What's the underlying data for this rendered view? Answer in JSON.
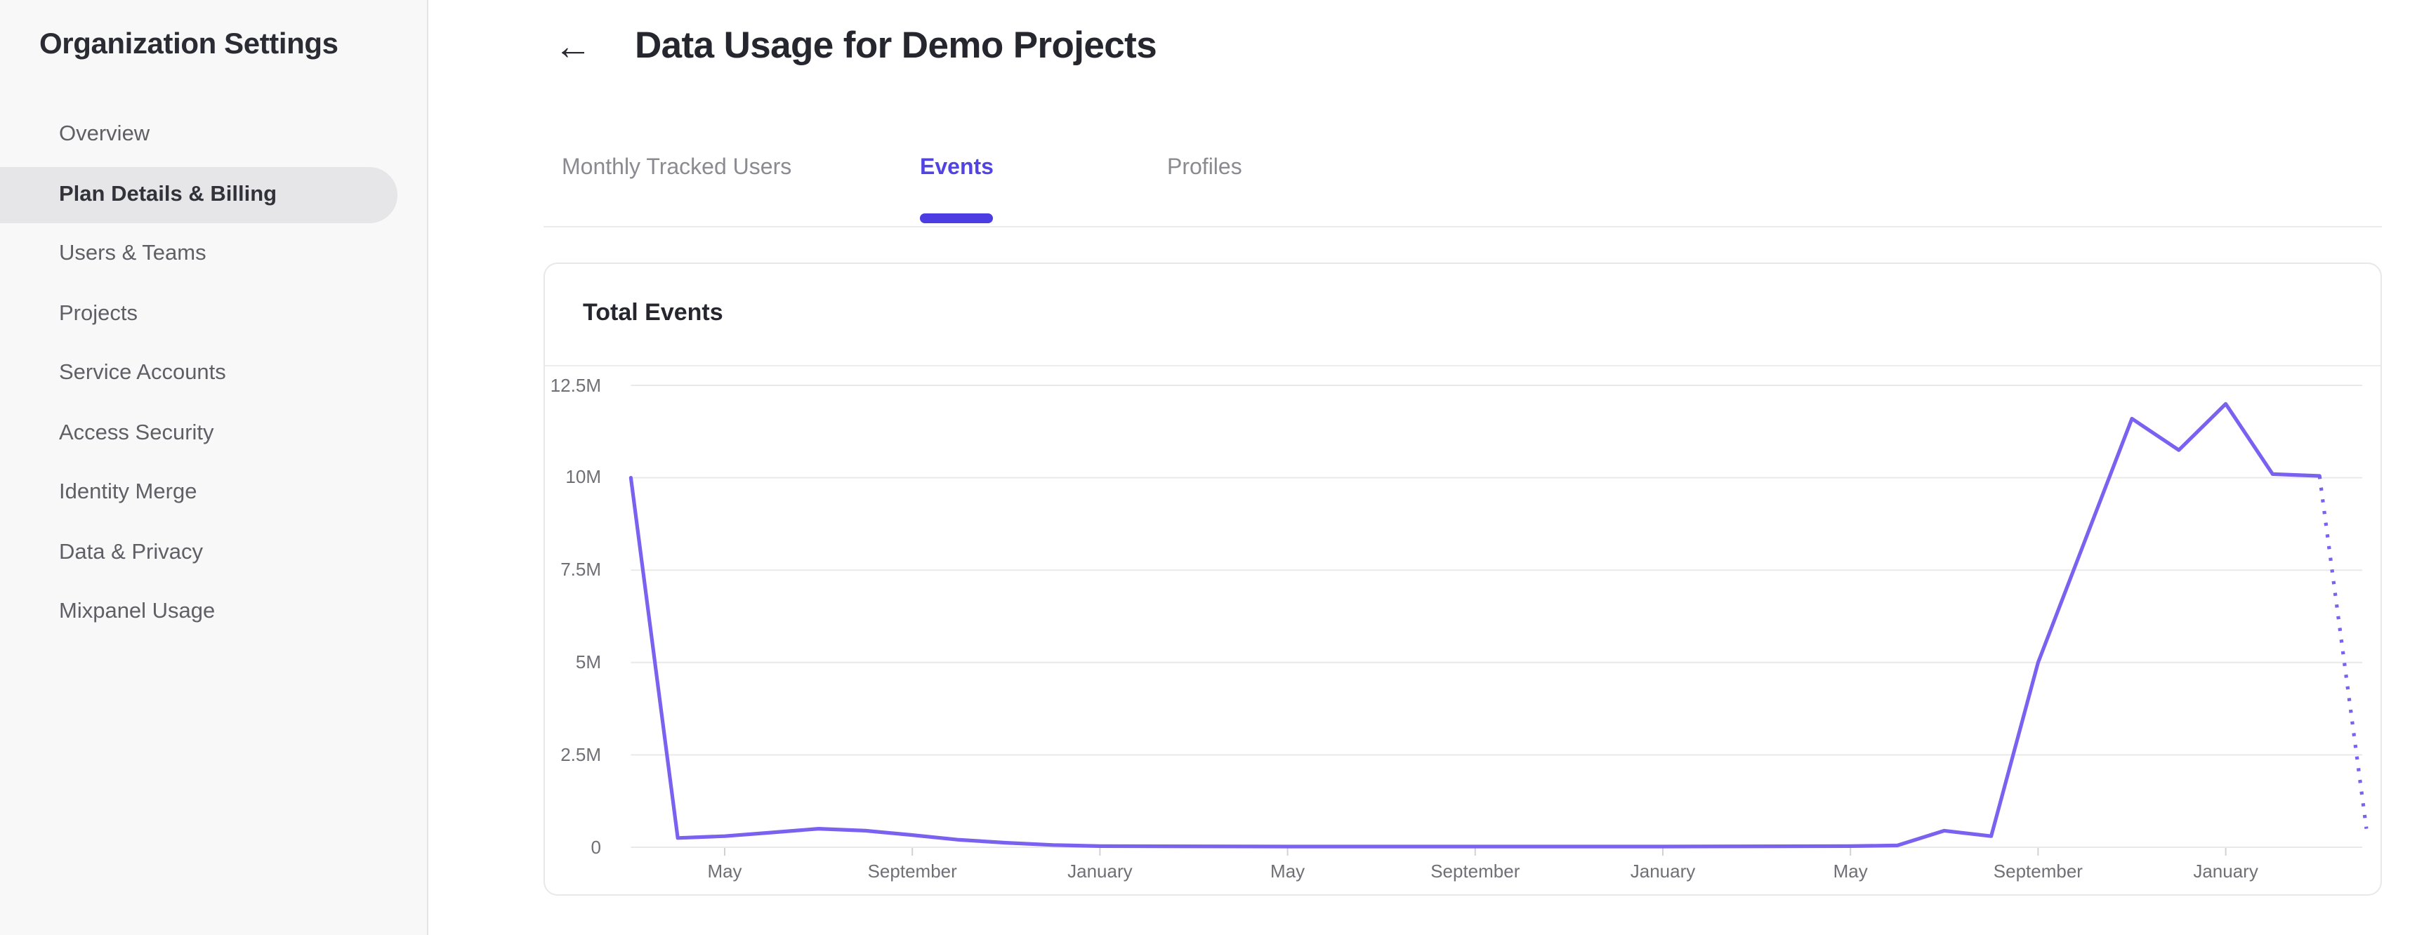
{
  "sidebar": {
    "title": "Organization Settings",
    "items": [
      {
        "label": "Overview",
        "selected": false
      },
      {
        "label": "Plan Details & Billing",
        "selected": true
      },
      {
        "label": "Users & Teams",
        "selected": false
      },
      {
        "label": "Projects",
        "selected": false
      },
      {
        "label": "Service Accounts",
        "selected": false
      },
      {
        "label": "Access Security",
        "selected": false
      },
      {
        "label": "Identity Merge",
        "selected": false
      },
      {
        "label": "Data & Privacy",
        "selected": false
      },
      {
        "label": "Mixpanel Usage",
        "selected": false
      }
    ]
  },
  "header": {
    "back_icon": "←",
    "title": "Data Usage for Demo Projects"
  },
  "tabs": [
    {
      "label": "Monthly Tracked Users",
      "active": false
    },
    {
      "label": "Events",
      "active": true
    },
    {
      "label": "Profiles",
      "active": false
    }
  ],
  "card": {
    "title": "Total Events"
  },
  "colors": {
    "accent_tab": "#5143e4",
    "tab_underline": "#4c3de2",
    "chart_line": "#7b61f0",
    "sidebar_bg": "#f8f8f9",
    "selected_item_bg": "#e6e6e8",
    "gridline": "#e9e9eb",
    "tick": "#d2d2d6",
    "axis_text": "#6f6f76"
  },
  "chart_data": {
    "type": "line",
    "title": "Total Events",
    "xlabel": "",
    "ylabel": "",
    "ylim": [
      0,
      12.5
    ],
    "unit": "millions of events",
    "grid": "horizontal",
    "legend": "none",
    "month_index_note": "m = months elapsed since first plotted month (March of year 1); values in millions",
    "y_ticks": [
      {
        "v": 0,
        "label": "0"
      },
      {
        "v": 2.5,
        "label": "2.5M"
      },
      {
        "v": 5,
        "label": "5M"
      },
      {
        "v": 7.5,
        "label": "7.5M"
      },
      {
        "v": 10,
        "label": "10M"
      },
      {
        "v": 12.5,
        "label": "12.5M"
      }
    ],
    "x_ticks": [
      {
        "m": 2,
        "label": "May"
      },
      {
        "m": 6,
        "label": "September"
      },
      {
        "m": 10,
        "label": "January"
      },
      {
        "m": 14,
        "label": "May"
      },
      {
        "m": 18,
        "label": "September"
      },
      {
        "m": 22,
        "label": "January"
      },
      {
        "m": 26,
        "label": "May"
      },
      {
        "m": 30,
        "label": "September"
      },
      {
        "m": 34,
        "label": "January"
      }
    ],
    "series": [
      {
        "name": "Total Events",
        "style": "solid",
        "points": [
          {
            "m": 0,
            "v": 10.0
          },
          {
            "m": 1,
            "v": 0.25
          },
          {
            "m": 2,
            "v": 0.3
          },
          {
            "m": 3,
            "v": 0.4
          },
          {
            "m": 4,
            "v": 0.5
          },
          {
            "m": 5,
            "v": 0.45
          },
          {
            "m": 6,
            "v": 0.33
          },
          {
            "m": 7,
            "v": 0.2
          },
          {
            "m": 8,
            "v": 0.12
          },
          {
            "m": 9,
            "v": 0.06
          },
          {
            "m": 10,
            "v": 0.03
          },
          {
            "m": 14,
            "v": 0.02
          },
          {
            "m": 18,
            "v": 0.02
          },
          {
            "m": 22,
            "v": 0.02
          },
          {
            "m": 26,
            "v": 0.03
          },
          {
            "m": 27,
            "v": 0.05
          },
          {
            "m": 28,
            "v": 0.45
          },
          {
            "m": 29,
            "v": 0.3
          },
          {
            "m": 30,
            "v": 5.0
          },
          {
            "m": 31,
            "v": 8.3
          },
          {
            "m": 32,
            "v": 11.6
          },
          {
            "m": 33,
            "v": 10.75
          },
          {
            "m": 34,
            "v": 12.0
          },
          {
            "m": 35,
            "v": 10.1
          },
          {
            "m": 36,
            "v": 10.05
          }
        ]
      },
      {
        "name": "Projected (incomplete month)",
        "style": "dotted",
        "points": [
          {
            "m": 36,
            "v": 10.05
          },
          {
            "m": 37,
            "v": 0.5
          }
        ]
      }
    ]
  }
}
